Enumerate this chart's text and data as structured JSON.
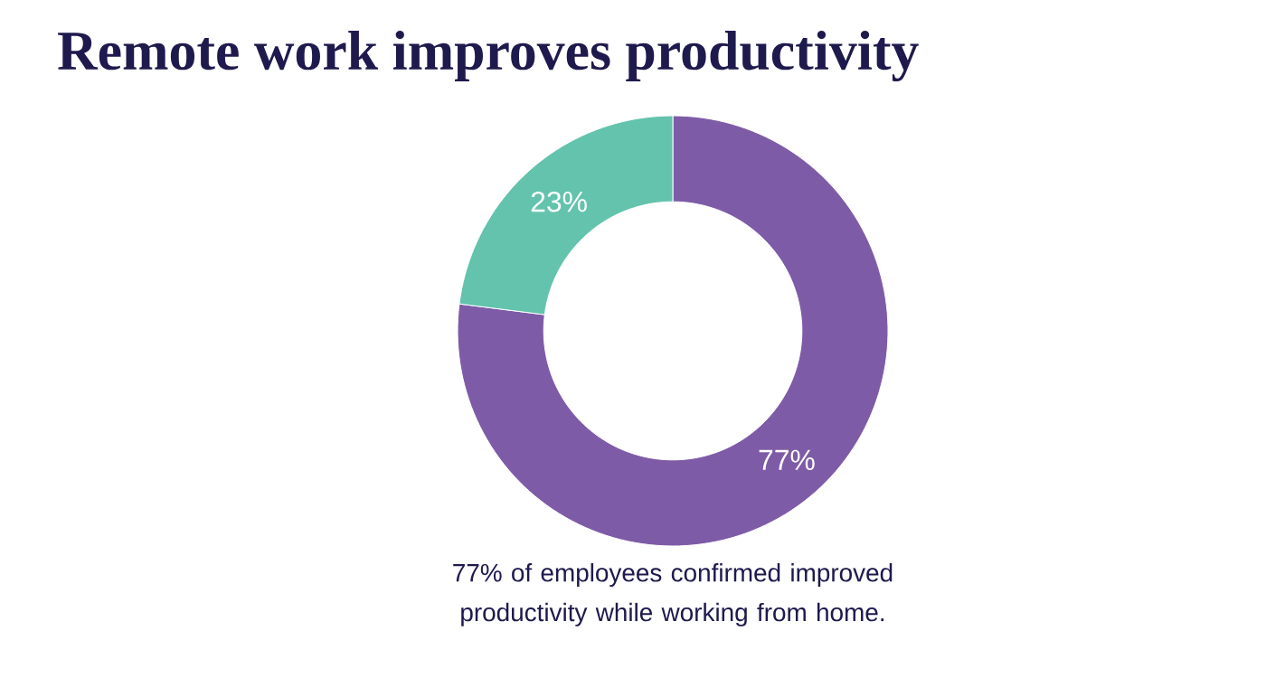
{
  "chart_data": {
    "type": "donut",
    "title": "Remote work improves productivity",
    "categories": [
      null,
      null
    ],
    "values": [
      77,
      23
    ],
    "colors": [
      "#7e5ba7",
      "#63c3ad"
    ],
    "value_labels": [
      "77%",
      "23%"
    ],
    "annotations": [
      "77% of employees confirmed improved productivity while working from home."
    ]
  }
}
